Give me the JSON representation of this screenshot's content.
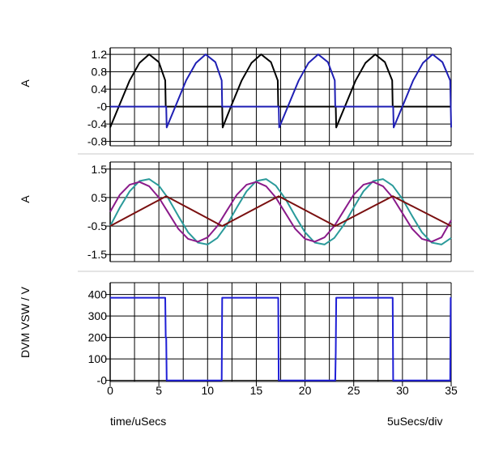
{
  "footer": {
    "left_label": "time/uSecs",
    "right_label": "5uSecs/div"
  },
  "chart_data": [
    {
      "type": "line",
      "ylabel": "A",
      "xlim": [
        0,
        35
      ],
      "ylim": [
        -0.9,
        1.35
      ],
      "yticks": [
        1.2,
        0.8,
        0.4,
        0,
        -0.4,
        -0.8
      ],
      "ytick_labels": [
        "1.2",
        "0.8",
        "0.4",
        "-0",
        "-0.4",
        "-0.8"
      ],
      "grid": true,
      "series": [
        {
          "color": "#000000",
          "x": [
            0,
            1,
            2,
            3,
            4,
            5,
            5.65,
            5.7,
            11.5,
            11.55,
            12.5,
            13.5,
            14.5,
            15.5,
            16.5,
            17.2,
            17.25,
            23.15,
            23.2,
            24.2,
            25.2,
            26.2,
            27.2,
            28.2,
            28.95,
            29.0,
            35.0
          ],
          "y": [
            -0.48,
            0.06,
            0.6,
            1.0,
            1.2,
            1.02,
            0.6,
            0.0,
            0.0,
            -0.48,
            0.06,
            0.6,
            1.0,
            1.2,
            1.02,
            0.6,
            0.0,
            0.0,
            -0.48,
            0.06,
            0.6,
            1.0,
            1.2,
            1.02,
            0.6,
            0.0,
            0.0
          ]
        },
        {
          "color": "#1f1fb4",
          "x": [
            0,
            5.75,
            5.8,
            6.8,
            7.8,
            8.8,
            9.8,
            10.8,
            11.45,
            11.5,
            17.3,
            17.35,
            18.35,
            19.35,
            20.35,
            21.35,
            22.35,
            23.05,
            23.1,
            29.05,
            29.1,
            30.1,
            31.1,
            32.1,
            33.1,
            34.1,
            34.9,
            35.0
          ],
          "y": [
            0.0,
            0.0,
            -0.48,
            0.06,
            0.6,
            1.0,
            1.2,
            1.02,
            0.6,
            0.0,
            0.0,
            -0.48,
            0.06,
            0.6,
            1.0,
            1.2,
            1.02,
            0.6,
            0.0,
            0.0,
            -0.48,
            0.06,
            0.6,
            1.0,
            1.2,
            1.02,
            0.6,
            -0.48
          ]
        }
      ]
    },
    {
      "type": "line",
      "ylabel": "A",
      "xlim": [
        0,
        35
      ],
      "ylim": [
        -1.75,
        1.75
      ],
      "yticks": [
        1.5,
        0.5,
        -0.5,
        -1.5
      ],
      "ytick_labels": [
        "1.5",
        "0.5",
        "-0.5",
        "-1.5"
      ],
      "grid": true,
      "series": [
        {
          "color": "#2a9a9a",
          "x": [
            0,
            1,
            2,
            3,
            4,
            5,
            6,
            7,
            8,
            9,
            10,
            11,
            12,
            13,
            14,
            15,
            16,
            17,
            18,
            19,
            20,
            21,
            22,
            23,
            24,
            25,
            26,
            27,
            28,
            29,
            30,
            31,
            32,
            33,
            34,
            35
          ],
          "y": [
            -0.5,
            0.15,
            0.72,
            1.08,
            1.15,
            0.92,
            0.45,
            -0.15,
            -0.72,
            -1.08,
            -1.15,
            -0.92,
            -0.45,
            0.15,
            0.72,
            1.08,
            1.15,
            0.92,
            0.45,
            -0.15,
            -0.72,
            -1.08,
            -1.15,
            -0.92,
            -0.45,
            0.15,
            0.72,
            1.08,
            1.15,
            0.92,
            0.45,
            -0.15,
            -0.72,
            -1.08,
            -1.15,
            -0.92
          ]
        },
        {
          "color": "#8a1a8a",
          "x": [
            0,
            1,
            2,
            3,
            4,
            5,
            6,
            7,
            8,
            9,
            10,
            11,
            12,
            13,
            14,
            15,
            16,
            17,
            18,
            19,
            20,
            21,
            22,
            23,
            24,
            25,
            26,
            27,
            28,
            29,
            30,
            31,
            32,
            33,
            34,
            35
          ],
          "y": [
            0.0,
            0.6,
            0.95,
            1.05,
            0.9,
            0.5,
            -0.05,
            -0.6,
            -0.95,
            -1.05,
            -0.9,
            -0.5,
            0.05,
            0.6,
            0.95,
            1.05,
            0.9,
            0.5,
            -0.05,
            -0.6,
            -0.95,
            -1.05,
            -0.9,
            -0.5,
            0.05,
            0.6,
            0.95,
            1.05,
            0.9,
            0.5,
            -0.05,
            -0.6,
            -0.95,
            -1.05,
            -0.9,
            -0.3
          ]
        },
        {
          "color": "#7a1010",
          "x": [
            0,
            5.75,
            11.5,
            17.3,
            23.1,
            29.0,
            35.0
          ],
          "y": [
            -0.5,
            0.55,
            -0.5,
            0.55,
            -0.5,
            0.55,
            -0.5
          ]
        }
      ]
    },
    {
      "type": "line",
      "ylabel": "DVM VSW / V",
      "xlabel": "time/uSecs",
      "xlim": [
        0,
        35
      ],
      "ylim": [
        -5,
        455
      ],
      "yticks": [
        400,
        300,
        200,
        100,
        0
      ],
      "ytick_labels": [
        "400",
        "300",
        "200",
        "100",
        "-0"
      ],
      "xticks": [
        0,
        5,
        10,
        15,
        20,
        25,
        30,
        35
      ],
      "xtick_labels": [
        "0",
        "5",
        "10",
        "15",
        "20",
        "25",
        "30",
        "35"
      ],
      "grid": true,
      "series": [
        {
          "color": "#1f1fd6",
          "x": [
            0,
            5.65,
            5.7,
            5.75,
            5.8,
            11.45,
            11.5,
            11.55,
            17.25,
            17.3,
            17.35,
            23.1,
            23.15,
            23.2,
            29.0,
            29.05,
            29.1,
            34.9,
            34.95,
            35.0
          ],
          "y": [
            385,
            385,
            200,
            200,
            0,
            0,
            385,
            385,
            385,
            0,
            0,
            0,
            130,
            385,
            385,
            0,
            0,
            0,
            385,
            385
          ]
        }
      ]
    }
  ]
}
